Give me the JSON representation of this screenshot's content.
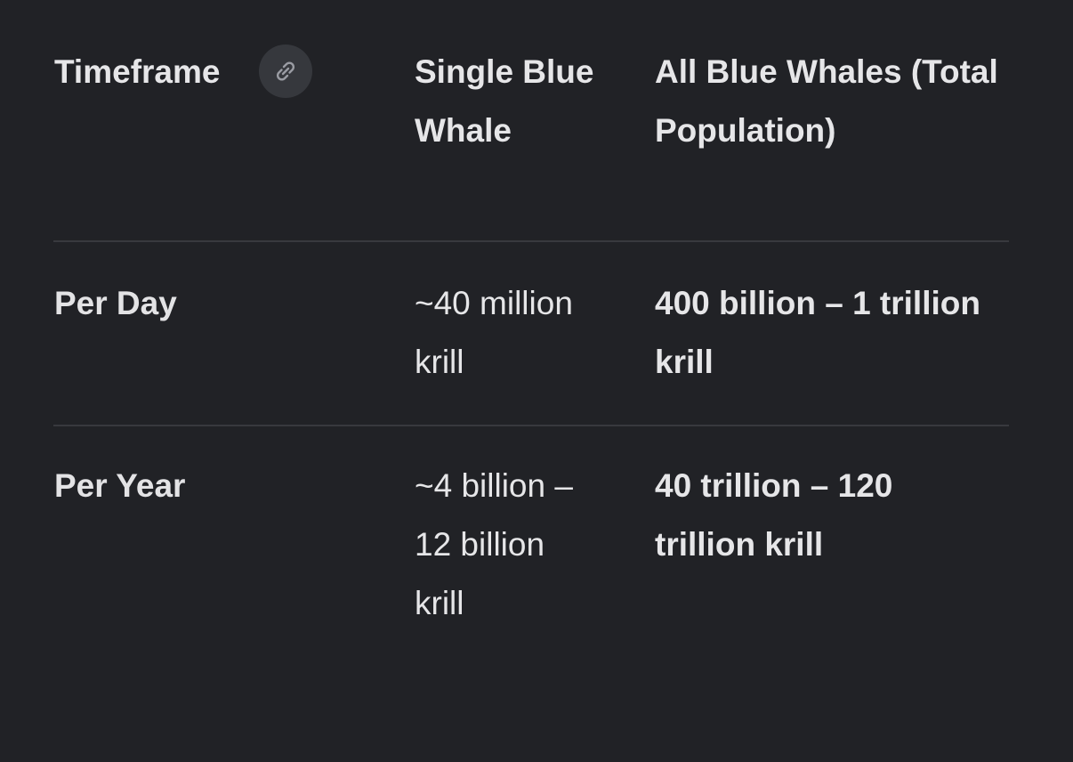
{
  "table": {
    "headers": [
      "Timeframe",
      "Single Blue Whale",
      "All Blue Whales (Total Population)"
    ],
    "rows": [
      [
        "Per Day",
        "~40 million krill",
        "400 billion – 1 trillion krill"
      ],
      [
        "Per Year",
        "~4 billion – 12 billion krill",
        "40 trillion – 120 trillion krill"
      ]
    ]
  }
}
